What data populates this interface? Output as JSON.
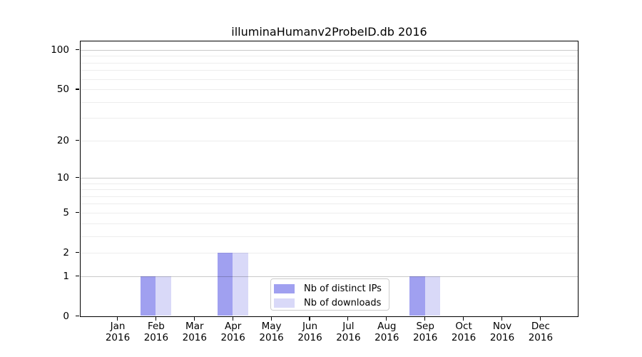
{
  "title": "illuminaHumanv2ProbeID.db 2016",
  "chart_data": {
    "type": "bar",
    "title": "illuminaHumanv2ProbeID.db 2016",
    "categories": [
      "Jan",
      "Feb",
      "Mar",
      "Apr",
      "May",
      "Jun",
      "Jul",
      "Aug",
      "Sep",
      "Oct",
      "Nov",
      "Dec"
    ],
    "category_year": "2016",
    "series": [
      {
        "name": "Nb of distinct IPs",
        "color": "#a0a0f0",
        "values": [
          0,
          1,
          0,
          2,
          0,
          0,
          0,
          0,
          1,
          0,
          0,
          0
        ]
      },
      {
        "name": "Nb of downloads",
        "color": "#d9d9f8",
        "values": [
          0,
          1,
          0,
          2,
          0,
          0,
          0,
          0,
          1,
          0,
          0,
          0
        ]
      }
    ],
    "xlabel": "",
    "ylabel": "",
    "y_scale": "log10(value+1)",
    "ylim": [
      0,
      116
    ],
    "y_ticks": [
      0,
      1,
      2,
      5,
      10,
      20,
      50,
      100
    ],
    "y_major_gridlines": [
      1,
      10,
      100
    ],
    "y_minor_gridlines": [
      2,
      3,
      4,
      5,
      6,
      7,
      8,
      9,
      20,
      30,
      40,
      50,
      60,
      70,
      80,
      90
    ],
    "grid": true,
    "legend_position": "lower center inside plot",
    "bar_layout": "paired, distinct-IPs bar left of tick, downloads bar right of tick"
  },
  "colors": {
    "background": "#ffffff",
    "spine": "#000000",
    "major_grid": "#c9c9c9",
    "minor_grid": "#ededed",
    "distinct_ips_bar": "#a0a0f0",
    "downloads_bar": "#d9d9f8",
    "legend_border": "#cccccc",
    "text": "#000000"
  }
}
